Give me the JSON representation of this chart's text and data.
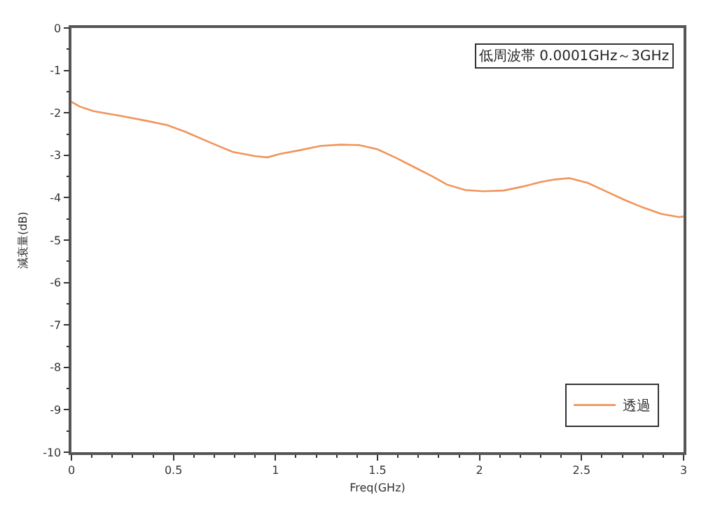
{
  "chart_data": {
    "type": "line",
    "xlabel": "Freq(GHz)",
    "ylabel": "減衰量(dB)",
    "annotations": [
      "低周波帯 0.0001GHz～3GHz"
    ],
    "x": [
      0,
      0.04,
      0.108,
      0.24,
      0.36,
      0.47,
      0.56,
      0.68,
      0.79,
      0.9,
      0.96,
      1.02,
      1.11,
      1.22,
      1.32,
      1.41,
      1.5,
      1.59,
      1.68,
      1.77,
      1.84,
      1.93,
      2.02,
      2.12,
      2.21,
      2.3,
      2.37,
      2.44,
      2.53,
      2.62,
      2.71,
      2.8,
      2.89,
      2.98,
      3
    ],
    "series": [
      {
        "name": "透過",
        "color": "#f0955a",
        "values": [
          -1.74,
          -1.85,
          -1.96,
          -2.07,
          -2.18,
          -2.29,
          -2.45,
          -2.7,
          -2.92,
          -3.02,
          -3.05,
          -2.97,
          -2.89,
          -2.78,
          -2.75,
          -2.76,
          -2.86,
          -3.06,
          -3.28,
          -3.5,
          -3.69,
          -3.82,
          -3.85,
          -3.83,
          -3.74,
          -3.63,
          -3.57,
          -3.54,
          -3.65,
          -3.85,
          -4.05,
          -4.23,
          -4.38,
          -4.46,
          -4.44
        ]
      }
    ],
    "xlim": [
      0,
      3
    ],
    "xticks": [
      0,
      0.5,
      1,
      1.5,
      2,
      2.5,
      3
    ],
    "ylim": [
      -10,
      0
    ],
    "yticks": [
      -10,
      -9,
      -8,
      -7,
      -6,
      -5,
      -4,
      -3,
      -2,
      -1,
      0
    ],
    "grid": false,
    "legend": "bottom right",
    "line_style": "solid",
    "marker": "none"
  }
}
